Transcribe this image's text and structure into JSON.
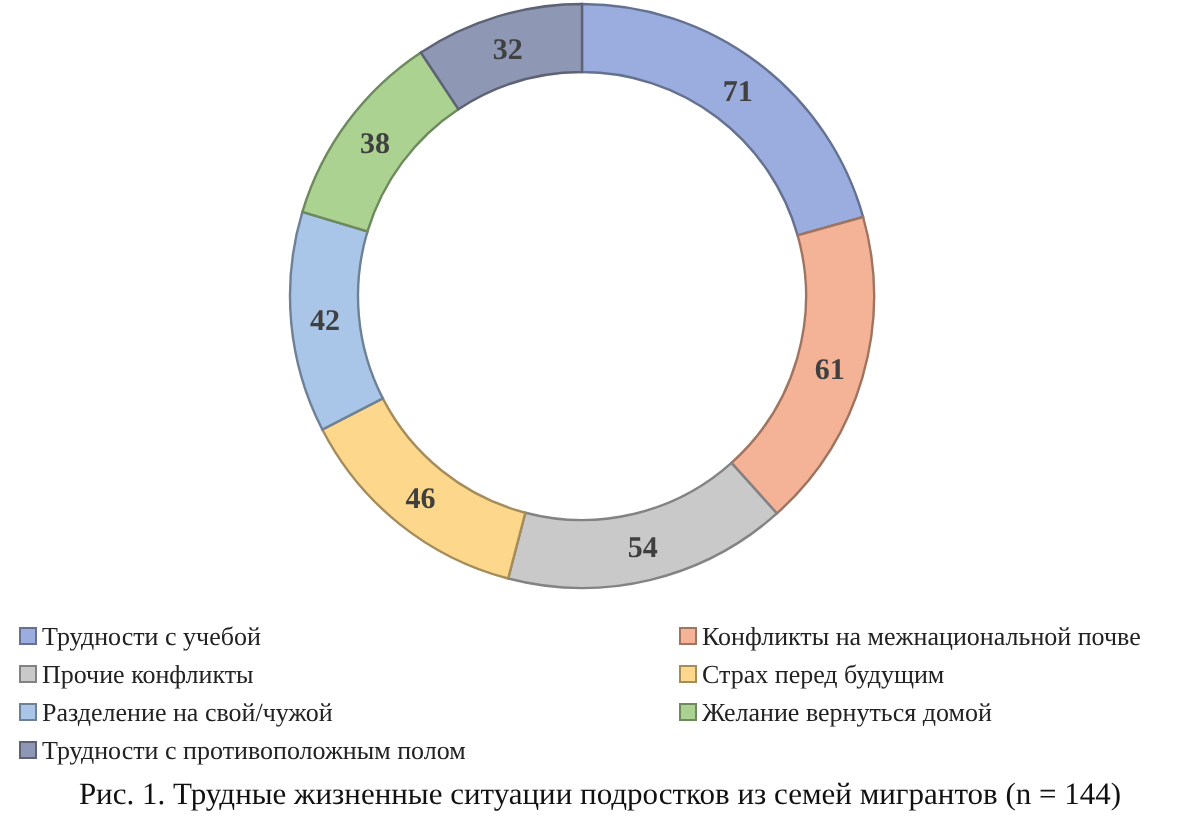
{
  "chart_data": {
    "type": "donut",
    "categories": [
      "Трудности с учебой",
      "Конфликты на межнациональной почве",
      "Прочие конфликты",
      "Страх перед будущим",
      "Разделение на свой/чужой",
      "Желание вернуться домой",
      "Трудности с противоположным полом"
    ],
    "values": [
      71,
      61,
      54,
      46,
      42,
      38,
      32
    ],
    "colors": [
      "#9badde",
      "#f4b396",
      "#c9c9c9",
      "#fdd88c",
      "#a9c6e8",
      "#abd290",
      "#8e97b3"
    ],
    "data_labels": true,
    "legend": "bottom",
    "annotations": [
      "Рис. 1. Трудные жизненные ситуации подростков из семей мигрантов (n = 144)"
    ]
  }
}
